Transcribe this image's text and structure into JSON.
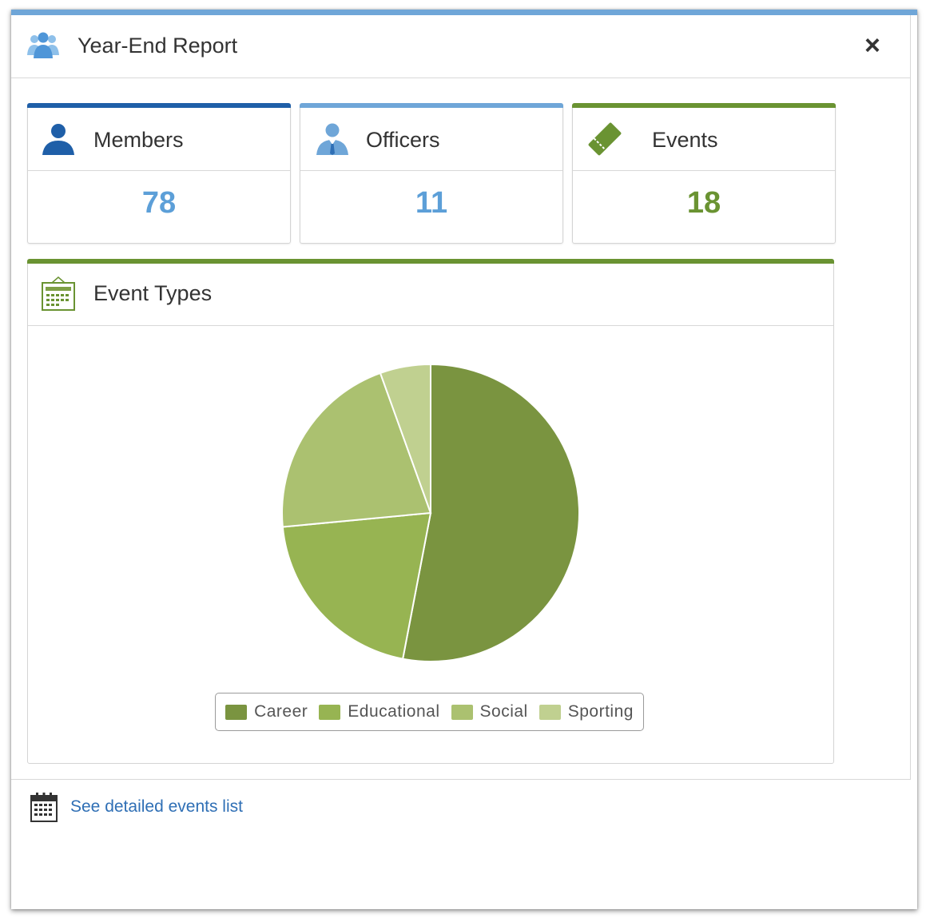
{
  "dialog": {
    "title": "Year-End Report",
    "close_label": "×",
    "accent_color": "#6fa6d8"
  },
  "stats": [
    {
      "label": "Members",
      "value": "78",
      "icon": "person-icon",
      "bar_color": "#1f5fa8",
      "value_color": "#5c9fd8"
    },
    {
      "label": "Officers",
      "value": "11",
      "icon": "officer-icon",
      "bar_color": "#6fa6d8",
      "value_color": "#5c9fd8"
    },
    {
      "label": "Events",
      "value": "18",
      "icon": "ticket-icon",
      "bar_color": "#6a9332",
      "value_color": "#6a9332"
    }
  ],
  "event_types": {
    "title": "Event Types",
    "icon": "calendar-board-icon"
  },
  "chart_data": {
    "type": "pie",
    "categories": [
      "Career",
      "Educational",
      "Social",
      "Sporting"
    ],
    "values": [
      53,
      20.5,
      21,
      5.5
    ],
    "colors": [
      "#7a9440",
      "#97b452",
      "#abc170",
      "#c0d090"
    ],
    "legend": "bottom"
  },
  "footer": {
    "link_text": "See detailed events list",
    "icon": "calendar-icon"
  }
}
